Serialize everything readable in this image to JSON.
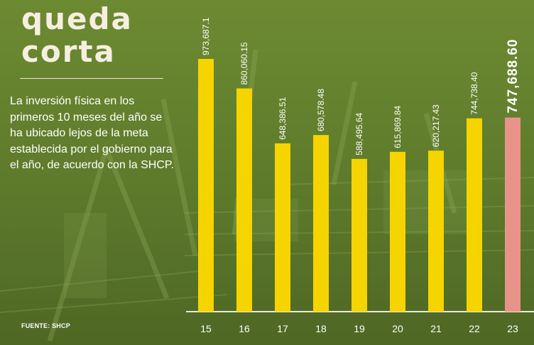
{
  "title_lines": [
    "queda",
    "corta"
  ],
  "description": "La inversión física en los primeros 10 meses del año se ha ubicado lejos de la meta establecida por el gobierno para el año, de acuerdo con la SHCP.",
  "source": "FUENTE: SHCP",
  "colors": {
    "background": "#5f7a2c",
    "bar": "#f5d400",
    "highlight_bar": "#e8938a",
    "text": "#ffffff"
  },
  "chart_data": {
    "type": "bar",
    "categories": [
      "15",
      "16",
      "17",
      "18",
      "19",
      "20",
      "21",
      "22",
      "23"
    ],
    "values": [
      973687.1,
      860060.15,
      648386.51,
      680578.48,
      588495.64,
      615869.84,
      620217.43,
      744738.4,
      747688.6
    ],
    "value_labels": [
      "973,687.1",
      "860,060.15",
      "648,386.51",
      "680,578.48",
      "588,495.64",
      "615,869.84",
      "620,217.43",
      "744,738.40",
      "747,688.60"
    ],
    "highlight_index": 8,
    "ylim": [
      0,
      1000000
    ],
    "grid": false,
    "legend": "none"
  }
}
